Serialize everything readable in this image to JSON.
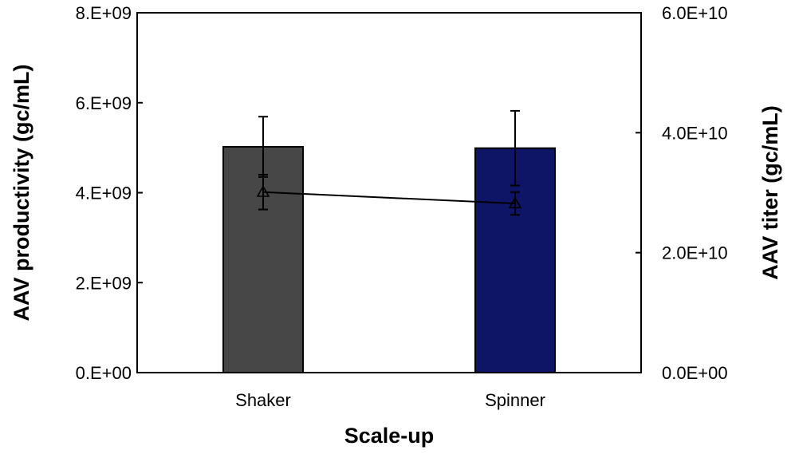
{
  "chart_data": {
    "type": "bar",
    "title": "",
    "xlabel": "Scale-up",
    "categories": [
      "Shaker",
      "Spinner"
    ],
    "left_axis": {
      "label": "AAV productivity (gc/mL)",
      "ylim": [
        0,
        8000000000
      ],
      "ticks": [
        0,
        2000000000,
        4000000000,
        6000000000,
        8000000000
      ],
      "tick_labels": [
        "0.E+00",
        "2.E+09",
        "4.E+09",
        "6.E+09",
        "8.E+09"
      ]
    },
    "right_axis": {
      "label": "AAV titer (gc/mL)",
      "ylim": [
        0,
        60000000000
      ],
      "ticks": [
        0,
        20000000000,
        40000000000,
        60000000000
      ],
      "tick_labels": [
        "0.0E+00",
        "2.0E+10",
        "4.0E+10",
        "6.0E+10"
      ]
    },
    "series": [
      {
        "name": "AAV productivity",
        "type": "bar",
        "axis": "left",
        "values": [
          5020000000,
          4990000000
        ],
        "errors": [
          670000000,
          830000000
        ],
        "colors": [
          "#474747",
          "#0e1566"
        ]
      },
      {
        "name": "AAV titer",
        "type": "line",
        "axis": "right",
        "marker": "triangle",
        "values": [
          30100000000,
          28200000000
        ],
        "errors": [
          2900000000,
          1900000000
        ],
        "color": "#000000"
      }
    ]
  }
}
